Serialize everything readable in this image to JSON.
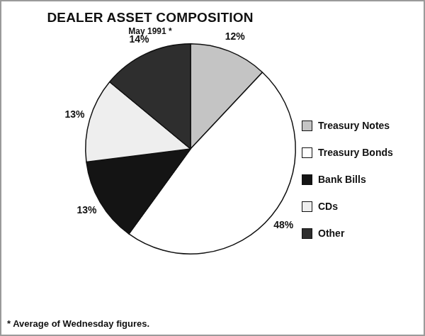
{
  "chart_data": {
    "type": "pie",
    "title": "DEALER ASSET COMPOSITION",
    "subtitle": "May 1991 *",
    "annotations": [
      "* Average of Wednesday figures."
    ],
    "categories": [
      "Treasury Notes",
      "Treasury Bonds",
      "Bank Bills",
      "CDs",
      "Other"
    ],
    "values": [
      12,
      48,
      13,
      13,
      14
    ],
    "value_labels": [
      "12%",
      "48%",
      "13%",
      "13%",
      "14%"
    ],
    "colors": [
      "#c4c4c4",
      "#ffffff",
      "#141414",
      "#eeeeee",
      "#2e2e2e"
    ],
    "data_labels": true,
    "legend": "right"
  }
}
